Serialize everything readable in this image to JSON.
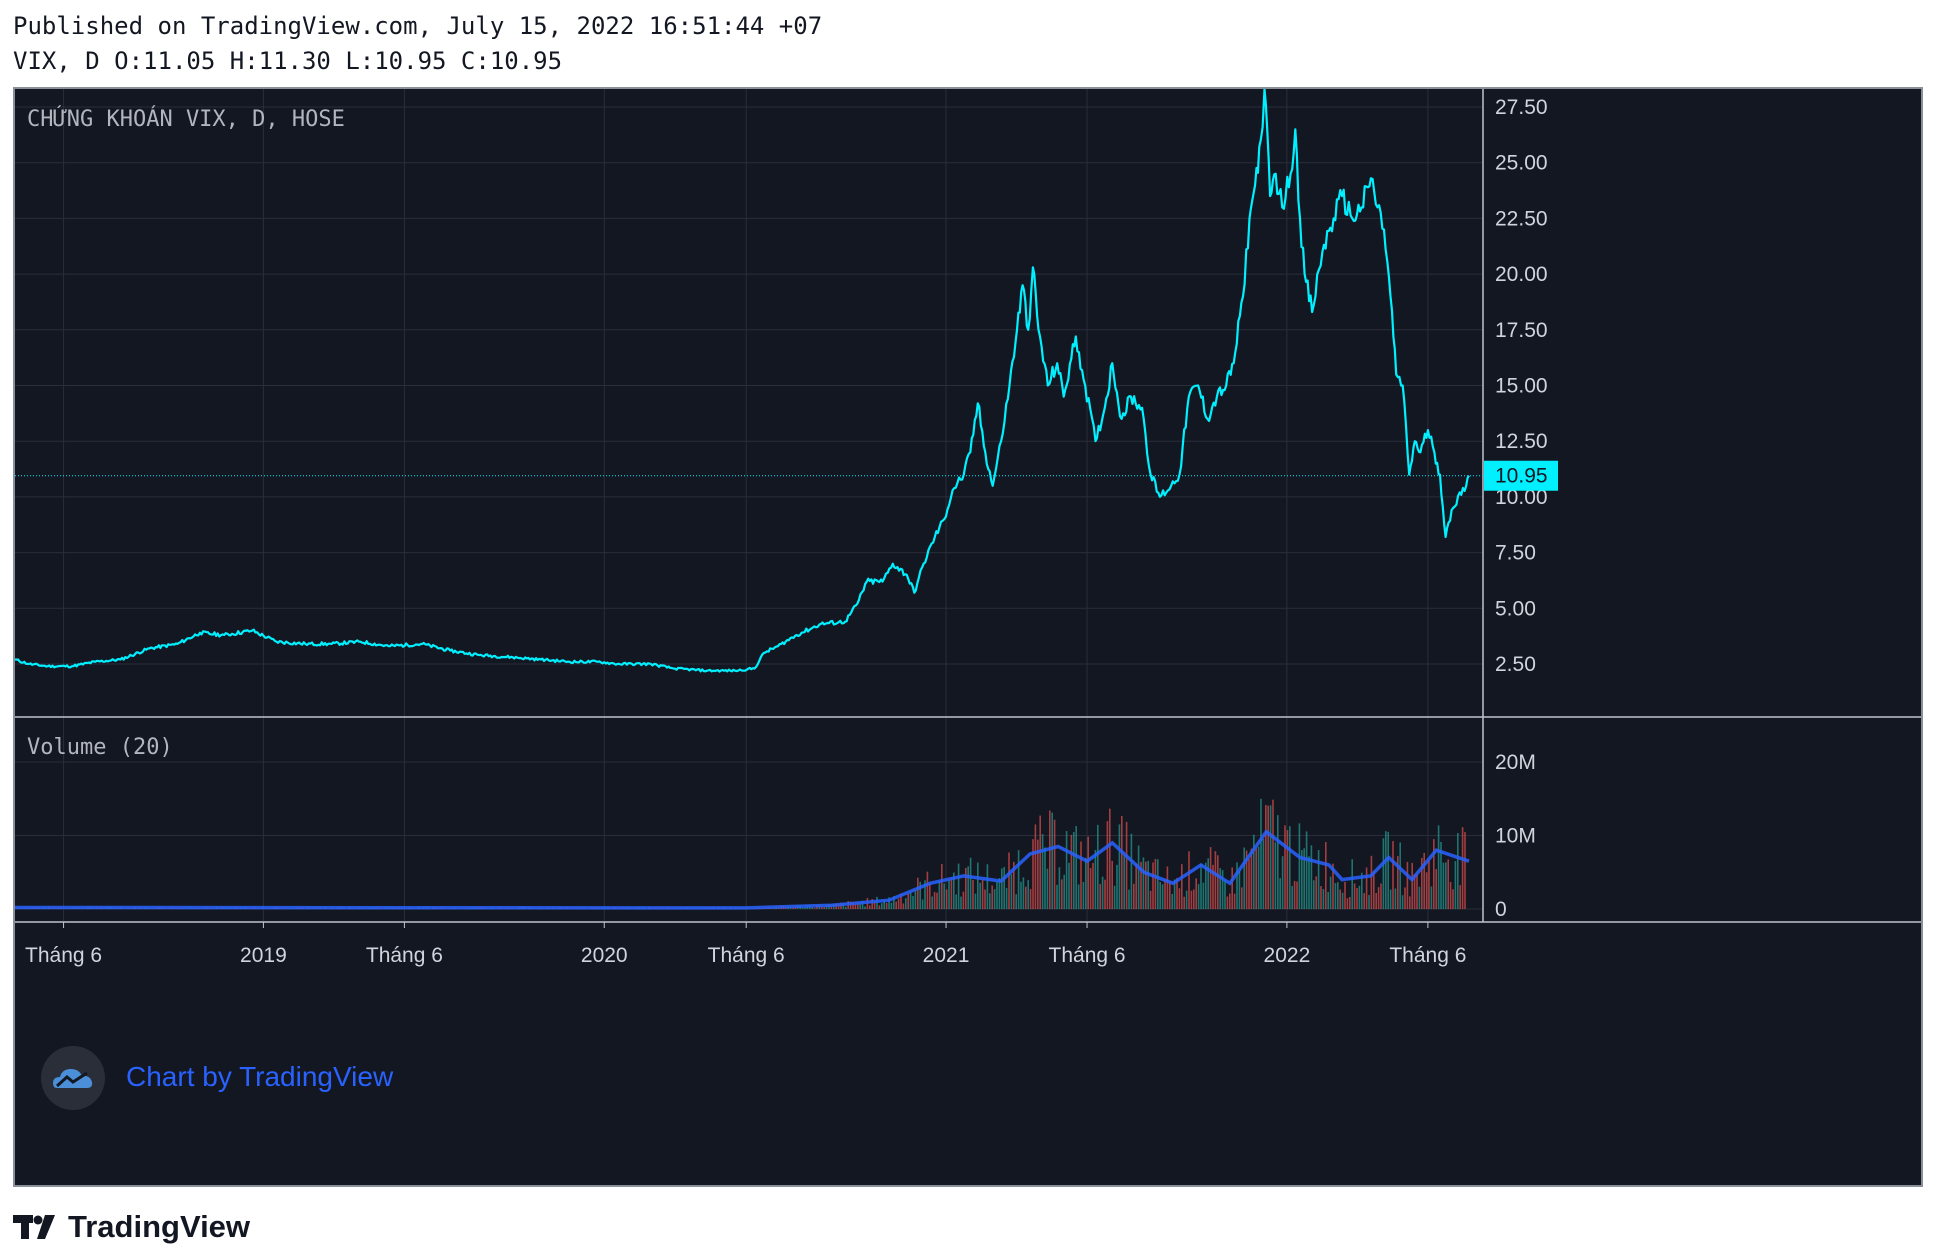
{
  "header": {
    "published": "Published on TradingView.com, July 15, 2022 16:51:44 +07",
    "ohlc": "VIX, D O:11.05 H:11.30 L:10.95 C:10.95"
  },
  "watermark": {
    "text": "Chart by TradingView"
  },
  "brand": {
    "name": "TradingView"
  },
  "colors": {
    "background": "#131722",
    "grid": "#2a2e39",
    "price_line": "#00f0ff",
    "price_label_bg": "#00f0ff",
    "volume_up": "#26a69a",
    "volume_down": "#ef5350",
    "volume_ma": "#2962ff"
  },
  "chart_data": {
    "type": "line",
    "symbol_label": "CHỨNG KHOÁN VIX, D, HOSE",
    "x_tick_labels": [
      "Tháng 6",
      "2019",
      "Tháng 6",
      "2020",
      "Tháng 6",
      "2021",
      "Tháng 6",
      "2022",
      "Tháng 6"
    ],
    "x_tick_dates": [
      "2018-06-01",
      "2019-01-01",
      "2019-06-01",
      "2020-01-01",
      "2020-06-01",
      "2021-01-01",
      "2021-06-01",
      "2022-01-01",
      "2022-06-01"
    ],
    "x_range": [
      "2018-04-10",
      "2022-07-30"
    ],
    "y_ticks": [
      "2.50",
      "5.00",
      "7.50",
      "10.00",
      "12.50",
      "15.00",
      "17.50",
      "20.00",
      "22.50",
      "25.00",
      "27.50"
    ],
    "y_range": [
      1.0,
      28.5
    ],
    "last_price": {
      "value": 10.95,
      "label": "10.95"
    },
    "price_series": {
      "name": "",
      "points": [
        [
          "2018-04-10",
          2.7
        ],
        [
          "2018-04-25",
          2.5
        ],
        [
          "2018-05-15",
          2.4
        ],
        [
          "2018-06-10",
          2.4
        ],
        [
          "2018-07-05",
          2.6
        ],
        [
          "2018-08-01",
          2.7
        ],
        [
          "2018-09-01",
          3.2
        ],
        [
          "2018-10-01",
          3.4
        ],
        [
          "2018-10-25",
          3.9
        ],
        [
          "2018-11-20",
          3.8
        ],
        [
          "2018-12-20",
          4.0
        ],
        [
          "2019-01-15",
          3.5
        ],
        [
          "2019-02-15",
          3.4
        ],
        [
          "2019-03-15",
          3.4
        ],
        [
          "2019-04-15",
          3.5
        ],
        [
          "2019-05-15",
          3.3
        ],
        [
          "2019-06-20",
          3.4
        ],
        [
          "2019-07-20",
          3.1
        ],
        [
          "2019-08-20",
          2.9
        ],
        [
          "2019-09-25",
          2.8
        ],
        [
          "2019-10-25",
          2.7
        ],
        [
          "2019-11-25",
          2.6
        ],
        [
          "2019-12-25",
          2.6
        ],
        [
          "2020-01-15",
          2.5
        ],
        [
          "2020-02-20",
          2.5
        ],
        [
          "2020-03-15",
          2.3
        ],
        [
          "2020-04-20",
          2.2
        ],
        [
          "2020-05-20",
          2.2
        ],
        [
          "2020-06-10",
          2.3
        ],
        [
          "2020-06-20",
          3.0
        ],
        [
          "2020-07-05",
          3.3
        ],
        [
          "2020-07-25",
          3.8
        ],
        [
          "2020-08-20",
          4.3
        ],
        [
          "2020-09-15",
          4.4
        ],
        [
          "2020-09-28",
          5.2
        ],
        [
          "2020-10-08",
          6.2
        ],
        [
          "2020-10-25",
          6.2
        ],
        [
          "2020-11-05",
          7.0
        ],
        [
          "2020-11-20",
          6.5
        ],
        [
          "2020-11-28",
          5.7
        ],
        [
          "2020-12-08",
          7.0
        ],
        [
          "2020-12-20",
          8.2
        ],
        [
          "2020-12-30",
          9.0
        ],
        [
          "2021-01-08",
          10.3
        ],
        [
          "2021-01-20",
          11.0
        ],
        [
          "2021-01-27",
          12.0
        ],
        [
          "2021-02-04",
          14.2
        ],
        [
          "2021-02-12",
          12.0
        ],
        [
          "2021-02-20",
          10.5
        ],
        [
          "2021-03-01",
          12.5
        ],
        [
          "2021-03-10",
          15.0
        ],
        [
          "2021-03-18",
          17.5
        ],
        [
          "2021-03-24",
          19.5
        ],
        [
          "2021-03-30",
          17.5
        ],
        [
          "2021-04-04",
          20.3
        ],
        [
          "2021-04-10",
          17.5
        ],
        [
          "2021-04-20",
          15.0
        ],
        [
          "2021-04-30",
          16.0
        ],
        [
          "2021-05-07",
          14.5
        ],
        [
          "2021-05-20",
          17.2
        ],
        [
          "2021-05-30",
          15.0
        ],
        [
          "2021-06-10",
          12.5
        ],
        [
          "2021-06-20",
          14.0
        ],
        [
          "2021-06-28",
          16.0
        ],
        [
          "2021-07-08",
          13.5
        ],
        [
          "2021-07-18",
          14.5
        ],
        [
          "2021-07-30",
          14.0
        ],
        [
          "2021-08-08",
          11.0
        ],
        [
          "2021-08-18",
          10.0
        ],
        [
          "2021-08-30",
          10.5
        ],
        [
          "2021-09-08",
          11.0
        ],
        [
          "2021-09-18",
          14.5
        ],
        [
          "2021-09-28",
          15.0
        ],
        [
          "2021-10-08",
          13.5
        ],
        [
          "2021-10-18",
          14.5
        ],
        [
          "2021-10-28",
          15.0
        ],
        [
          "2021-11-05",
          16.0
        ],
        [
          "2021-11-15",
          19.0
        ],
        [
          "2021-11-22",
          22.5
        ],
        [
          "2021-11-28",
          24.0
        ],
        [
          "2021-12-04",
          26.0
        ],
        [
          "2021-12-08",
          28.3
        ],
        [
          "2021-12-14",
          23.5
        ],
        [
          "2021-12-20",
          24.5
        ],
        [
          "2021-12-27",
          23.0
        ],
        [
          "2022-01-05",
          24.5
        ],
        [
          "2022-01-10",
          26.5
        ],
        [
          "2022-01-15",
          22.5
        ],
        [
          "2022-01-20",
          20.0
        ],
        [
          "2022-01-28",
          18.3
        ],
        [
          "2022-02-08",
          21.0
        ],
        [
          "2022-02-20",
          22.5
        ],
        [
          "2022-03-01",
          23.5
        ],
        [
          "2022-03-12",
          22.5
        ],
        [
          "2022-03-22",
          23.0
        ],
        [
          "2022-04-01",
          24.3
        ],
        [
          "2022-04-08",
          23.0
        ],
        [
          "2022-04-15",
          22.0
        ],
        [
          "2022-04-22",
          19.0
        ],
        [
          "2022-04-28",
          15.5
        ],
        [
          "2022-05-05",
          15.0
        ],
        [
          "2022-05-12",
          11.0
        ],
        [
          "2022-05-18",
          12.5
        ],
        [
          "2022-05-24",
          12.0
        ],
        [
          "2022-06-01",
          13.0
        ],
        [
          "2022-06-08",
          12.0
        ],
        [
          "2022-06-14",
          11.0
        ],
        [
          "2022-06-20",
          8.2
        ],
        [
          "2022-06-28",
          9.5
        ],
        [
          "2022-07-05",
          10.2
        ],
        [
          "2022-07-12",
          10.5
        ],
        [
          "2022-07-15",
          10.95
        ]
      ]
    },
    "volume": {
      "label": "Volume (20)",
      "y_ticks": [
        "0",
        "10M",
        "20M"
      ],
      "y_range": [
        0,
        27000000
      ],
      "ma_length": 20,
      "ma_series": [
        [
          "2018-04-10",
          200000
        ],
        [
          "2020-06-01",
          150000
        ],
        [
          "2020-09-01",
          500000
        ],
        [
          "2020-11-01",
          1200000
        ],
        [
          "2020-12-15",
          3500000
        ],
        [
          "2021-01-20",
          4500000
        ],
        [
          "2021-03-01",
          3800000
        ],
        [
          "2021-04-01",
          7500000
        ],
        [
          "2021-05-01",
          8500000
        ],
        [
          "2021-06-01",
          6500000
        ],
        [
          "2021-06-28",
          9000000
        ],
        [
          "2021-08-01",
          5000000
        ],
        [
          "2021-09-01",
          3500000
        ],
        [
          "2021-10-01",
          6000000
        ],
        [
          "2021-11-01",
          3500000
        ],
        [
          "2021-12-10",
          10500000
        ],
        [
          "2022-01-15",
          7000000
        ],
        [
          "2022-02-15",
          6000000
        ],
        [
          "2022-03-01",
          4000000
        ],
        [
          "2022-04-01",
          4500000
        ],
        [
          "2022-04-20",
          7000000
        ],
        [
          "2022-05-15",
          4000000
        ],
        [
          "2022-06-10",
          8000000
        ],
        [
          "2022-07-15",
          6500000
        ]
      ]
    }
  }
}
